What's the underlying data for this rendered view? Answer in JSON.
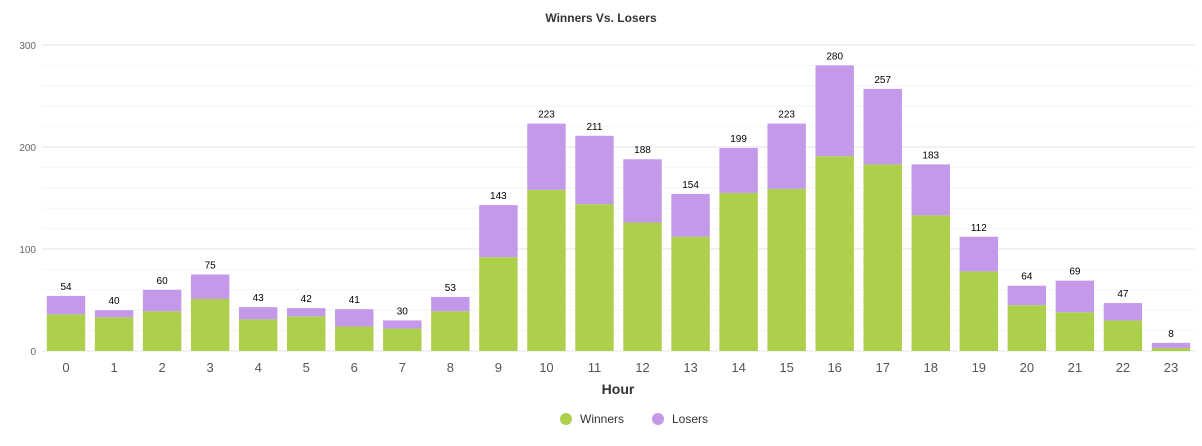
{
  "chart_data": {
    "type": "bar",
    "stacked": true,
    "title": "Winners Vs. Losers",
    "xlabel": "Hour",
    "ylabel": "",
    "ylim": [
      0,
      300
    ],
    "yticks": [
      "0",
      "100",
      "200",
      "300"
    ],
    "grid": true,
    "legend_position": "bottom",
    "categories": [
      "0",
      "1",
      "2",
      "3",
      "4",
      "5",
      "6",
      "7",
      "8",
      "9",
      "10",
      "11",
      "12",
      "13",
      "14",
      "15",
      "16",
      "17",
      "18",
      "19",
      "20",
      "21",
      "22",
      "23"
    ],
    "series": [
      {
        "name": "Winners",
        "color": "#acd04c",
        "values": [
          36,
          33,
          39,
          51,
          31,
          34,
          24,
          22,
          39,
          92,
          158,
          144,
          126,
          112,
          155,
          159,
          191,
          183,
          133,
          78,
          45,
          38,
          30,
          3
        ]
      },
      {
        "name": "Losers",
        "color": "#c499e9",
        "values": [
          18,
          7,
          21,
          24,
          12,
          8,
          17,
          8,
          14,
          51,
          65,
          67,
          62,
          42,
          44,
          64,
          89,
          74,
          50,
          34,
          19,
          31,
          17,
          5
        ]
      }
    ],
    "totals": [
      54,
      40,
      60,
      75,
      43,
      42,
      41,
      30,
      53,
      143,
      223,
      211,
      188,
      154,
      199,
      223,
      280,
      257,
      183,
      112,
      64,
      69,
      47,
      8
    ]
  }
}
